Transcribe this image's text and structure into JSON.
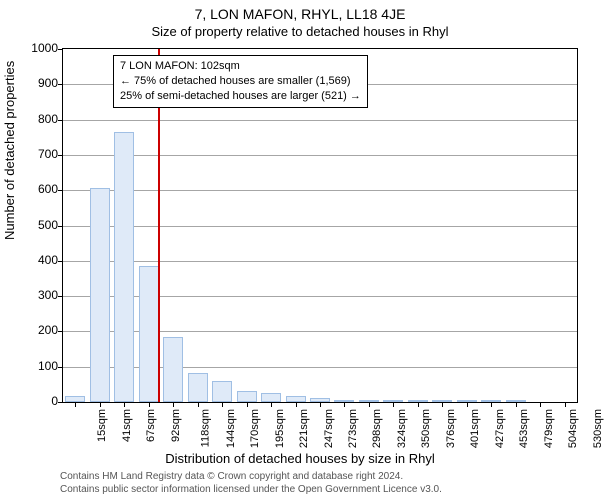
{
  "chart": {
    "type": "histogram",
    "title": "7, LON MAFON, RHYL, LL18 4JE",
    "subtitle": "Size of property relative to detached houses in Rhyl",
    "ylabel": "Number of detached properties",
    "xlabel": "Distribution of detached houses by size in Rhyl",
    "title_fontsize": 14,
    "label_fontsize": 13,
    "tick_fontsize": 12,
    "background_color": "#ffffff",
    "bar_fill": "#dfeaf8",
    "bar_border": "#a0bfe4",
    "ref_line_color": "#cc0000",
    "border_color": "#000000",
    "ylim": [
      0,
      1000
    ],
    "ytick_step": 100,
    "xticks": [
      "15sqm",
      "41sqm",
      "67sqm",
      "92sqm",
      "118sqm",
      "144sqm",
      "170sqm",
      "195sqm",
      "221sqm",
      "247sqm",
      "273sqm",
      "298sqm",
      "324sqm",
      "350sqm",
      "376sqm",
      "401sqm",
      "427sqm",
      "453sqm",
      "479sqm",
      "504sqm",
      "530sqm"
    ],
    "bars": [
      18,
      605,
      765,
      385,
      185,
      82,
      60,
      30,
      25,
      18,
      12,
      4,
      3,
      2,
      1,
      1,
      1,
      1,
      1,
      0,
      0
    ],
    "ref_value_index": 3.4,
    "info_box": {
      "line1": "7 LON MAFON: 102sqm",
      "line2": "← 75% of detached houses are smaller (1,569)",
      "line3": "25% of semi-detached houses are larger (521) →"
    }
  },
  "credits": {
    "line1": "Contains HM Land Registry data © Crown copyright and database right 2024.",
    "line2": "Contains public sector information licensed under the Open Government Licence v3.0."
  }
}
